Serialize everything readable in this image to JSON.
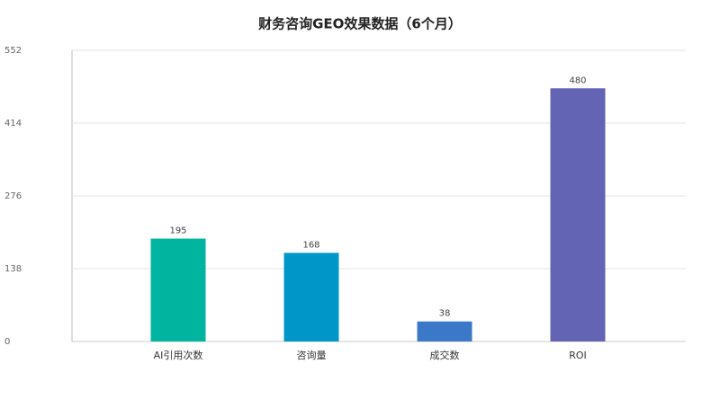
{
  "chart_data": {
    "type": "bar",
    "title": "财务咨询GEO效果数据（6个月）",
    "categories": [
      "AI引用次数",
      "咨询量",
      "成交数",
      "ROI"
    ],
    "values": [
      195,
      168,
      38,
      480
    ],
    "colors": [
      "#00b4a0",
      "#0096c8",
      "#3c78c8",
      "#6464b4"
    ],
    "ylim": [
      0,
      552
    ],
    "yticks": [
      0,
      138,
      276,
      414,
      552
    ],
    "grid": true
  }
}
